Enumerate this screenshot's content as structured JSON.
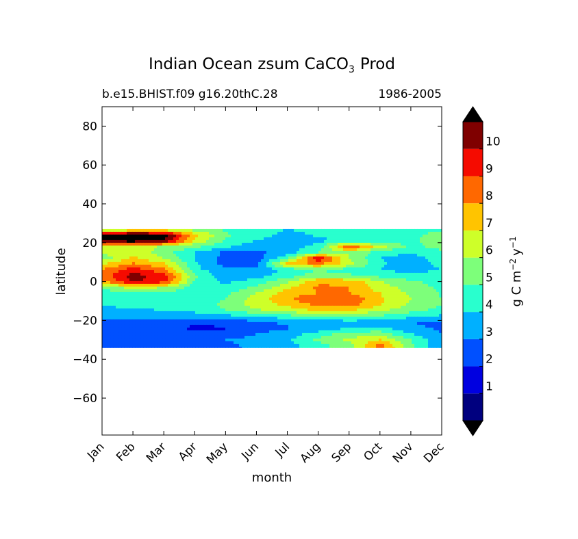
{
  "chart_data": {
    "type": "heatmap",
    "title": "Indian Ocean zsum CaCO",
    "title_subscript": "3",
    "title_suffix": "Prod",
    "subtitle_left": "b.e15.BHIST.f09 g16.20thC.28",
    "subtitle_right": "1986-2005",
    "xlabel": "month",
    "ylabel": "latitude",
    "x_categories": [
      "Jan",
      "Feb",
      "Mar",
      "Apr",
      "May",
      "Jun",
      "Jul",
      "Aug",
      "Sep",
      "Oct",
      "Nov",
      "Dec"
    ],
    "yticks": [
      -60,
      -40,
      -20,
      0,
      20,
      40,
      60,
      80
    ],
    "ytick_labels": [
      "−60",
      "−40",
      "−20",
      "0",
      "20",
      "40",
      "60",
      "80"
    ],
    "ylim": [
      -79,
      90
    ],
    "data_lat_range": [
      -34,
      27
    ],
    "colorbar": {
      "levels": [
        0,
        1,
        2,
        3,
        4,
        5,
        6,
        7,
        8,
        9,
        10,
        11
      ],
      "tick_values": [
        1,
        2,
        3,
        4,
        5,
        6,
        7,
        8,
        9,
        10
      ],
      "tick_labels": [
        "1",
        "2",
        "3",
        "4",
        "5",
        "6",
        "7",
        "8",
        "9",
        "10"
      ],
      "colors": [
        "#00007f",
        "#0000e0",
        "#0050ff",
        "#00b0ff",
        "#29ffce",
        "#7dff7a",
        "#ceff29",
        "#ffc400",
        "#ff6800",
        "#f50b00",
        "#7f0000"
      ],
      "under_color": "#000000",
      "over_color": "#000000",
      "label": "g C m",
      "label_sup1": "−2",
      "label_mid": "y",
      "label_sup2": "−1"
    },
    "latitudes": [
      27,
      24,
      21,
      18,
      15,
      12,
      9,
      6,
      3,
      0,
      -3,
      -6,
      -9,
      -12,
      -15,
      -18,
      -21,
      -24,
      -27,
      -30,
      -33
    ],
    "values": [
      [
        5.0,
        5.6,
        5.8,
        5.4,
        4.8,
        4.3,
        4.0,
        4.2,
        4.3,
        4.4,
        4.6,
        4.8
      ],
      [
        11.5,
        12.0,
        11.6,
        7.4,
        5.2,
        4.3,
        3.8,
        4.1,
        4.4,
        4.4,
        4.7,
        5.5
      ],
      [
        11.2,
        11.6,
        11.0,
        6.8,
        4.8,
        4.0,
        3.5,
        3.8,
        4.2,
        4.3,
        4.7,
        5.7
      ],
      [
        6.9,
        6.8,
        5.8,
        5.3,
        4.2,
        3.4,
        3.6,
        4.3,
        9.0,
        6.5,
        4.7,
        5.4
      ],
      [
        6.2,
        6.8,
        5.5,
        4.0,
        2.8,
        2.7,
        3.6,
        5.0,
        6.0,
        4.5,
        4.1,
        4.8
      ],
      [
        5.4,
        7.2,
        6.0,
        4.0,
        2.6,
        2.5,
        4.7,
        10.2,
        6.0,
        4.0,
        3.5,
        4.5
      ],
      [
        7.0,
        8.2,
        7.2,
        4.2,
        2.6,
        2.6,
        7.5,
        8.2,
        6.5,
        4.2,
        3.3,
        4.3
      ],
      [
        8.0,
        9.6,
        8.3,
        4.3,
        3.2,
        3.3,
        4.2,
        5.0,
        4.5,
        4.0,
        3.6,
        4.0
      ],
      [
        8.4,
        10.4,
        9.6,
        5.3,
        3.3,
        3.6,
        4.5,
        5.5,
        5.2,
        4.7,
        4.3,
        4.5
      ],
      [
        7.9,
        10.2,
        9.4,
        4.9,
        3.8,
        4.4,
        5.8,
        7.8,
        7.8,
        6.0,
        5.2,
        4.6
      ],
      [
        5.0,
        6.5,
        6.0,
        4.5,
        4.2,
        5.2,
        6.8,
        8.2,
        8.0,
        6.5,
        5.5,
        4.8
      ],
      [
        4.5,
        5.0,
        4.8,
        4.5,
        4.8,
        6.0,
        7.5,
        8.0,
        8.0,
        7.0,
        5.8,
        4.9
      ],
      [
        4.2,
        4.5,
        4.4,
        4.6,
        5.0,
        6.5,
        7.8,
        9.0,
        9.0,
        7.2,
        6.0,
        5.0
      ],
      [
        4.0,
        4.2,
        4.2,
        4.5,
        5.2,
        6.5,
        7.2,
        8.2,
        8.5,
        7.0,
        5.8,
        5.0
      ],
      [
        3.8,
        3.9,
        4.0,
        4.2,
        5.0,
        5.8,
        6.5,
        7.0,
        7.0,
        6.2,
        5.3,
        4.6
      ],
      [
        3.4,
        3.5,
        3.5,
        3.5,
        3.6,
        4.0,
        4.5,
        5.0,
        5.2,
        4.8,
        4.2,
        3.8
      ],
      [
        2.8,
        2.7,
        2.6,
        2.2,
        2.3,
        2.8,
        3.2,
        3.4,
        3.6,
        3.5,
        3.0,
        2.8
      ],
      [
        2.8,
        2.6,
        2.3,
        1.8,
        1.9,
        2.5,
        2.9,
        3.2,
        4.0,
        4.2,
        3.3,
        2.8
      ],
      [
        2.9,
        2.6,
        2.5,
        2.4,
        2.6,
        3.0,
        3.5,
        4.5,
        5.5,
        5.6,
        4.0,
        3.0
      ],
      [
        3.0,
        2.8,
        2.7,
        2.8,
        3.0,
        3.2,
        3.8,
        5.2,
        6.2,
        7.0,
        5.0,
        3.2
      ],
      [
        2.7,
        2.6,
        2.6,
        2.7,
        2.9,
        3.1,
        3.6,
        4.6,
        5.6,
        8.5,
        5.2,
        3.2
      ]
    ]
  }
}
